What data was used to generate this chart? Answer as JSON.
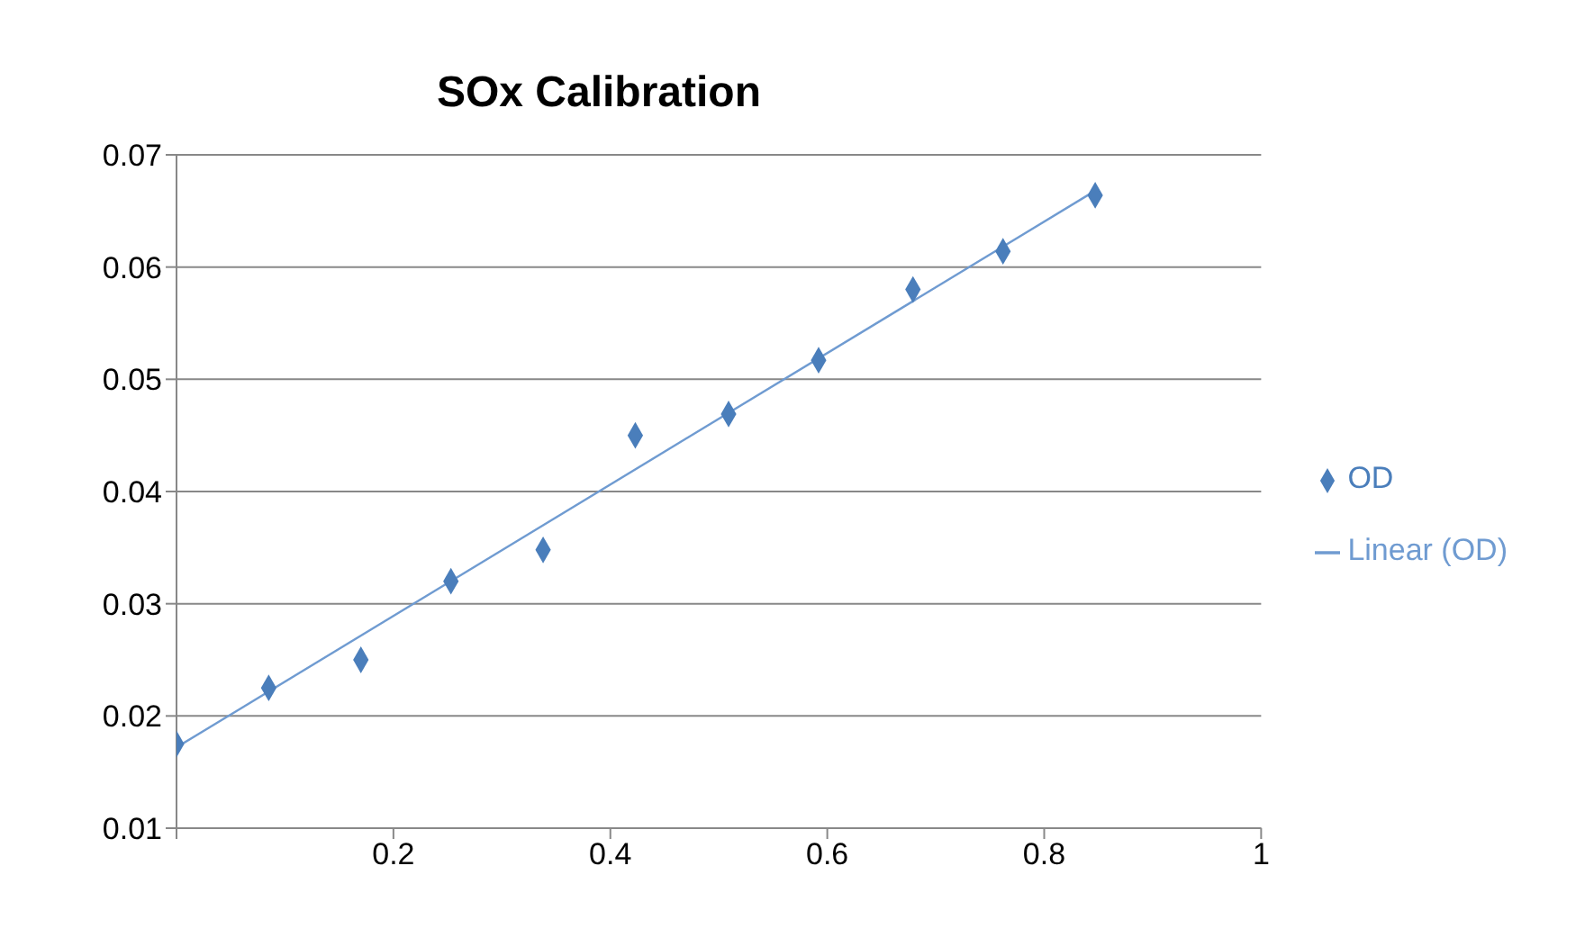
{
  "chart_data": {
    "type": "scatter",
    "title": "SOx Calibration",
    "xlim": [
      0,
      1
    ],
    "xticks": [
      {
        "value": 0,
        "label": null
      },
      0.2,
      0.4,
      0.6,
      0.8,
      1
    ],
    "ylim": [
      0.01,
      0.07
    ],
    "yticks": [
      0.01,
      0.02,
      0.03,
      0.04,
      0.05,
      0.06,
      0.07
    ],
    "grid": "y",
    "legend": "right",
    "marker": "diamond",
    "series": [
      {
        "name": "OD",
        "color": "#4a7ebb",
        "x": [
          0,
          0.085,
          0.17,
          0.253,
          0.338,
          0.423,
          0.509,
          0.592,
          0.679,
          0.762,
          0.847
        ],
        "values": [
          0.0175,
          0.0225,
          0.025,
          0.032,
          0.0348,
          0.045,
          0.0469,
          0.0517,
          0.058,
          0.0614,
          0.0664
        ]
      },
      {
        "name": "Linear (OD)",
        "type": "line",
        "marker": "none",
        "color": "#6f9bd1",
        "x": [
          0,
          0.847
        ],
        "values": [
          0.0172,
          0.0668
        ]
      }
    ]
  }
}
